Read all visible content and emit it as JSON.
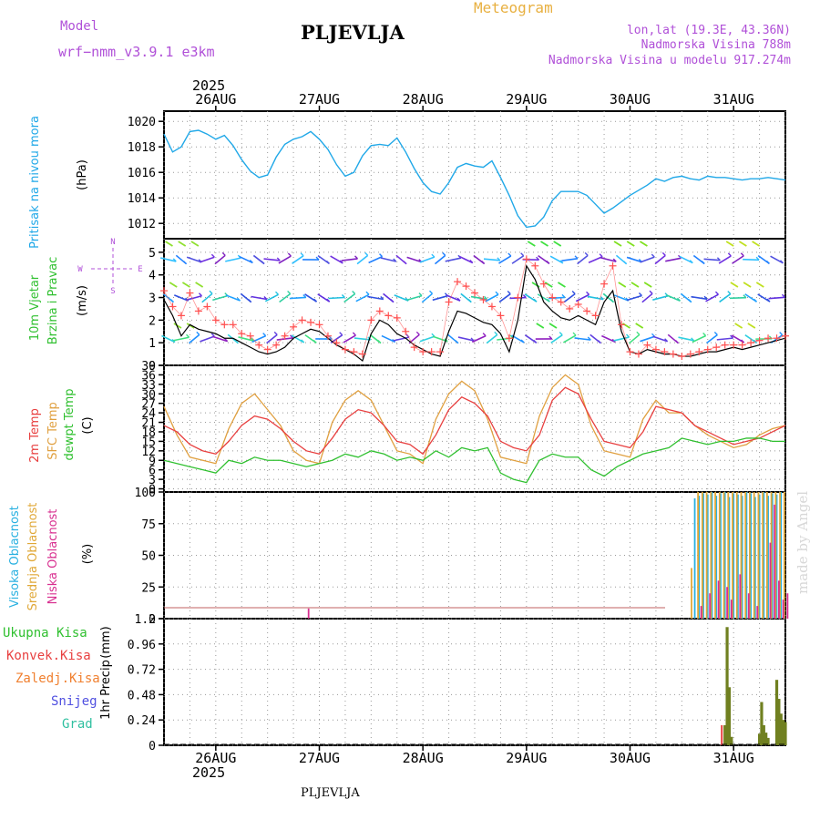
{
  "header": {
    "model_label": "Model",
    "model_name": "wrf−nmm_v3.9.1  e3km",
    "station": "PLJEVLJA",
    "title": "Meteogram",
    "lonlat": "lon,lat (19.3E, 43.36N)",
    "elevation": "Nadmorska Visina 788m",
    "model_elevation": "Nadmorska Visina u modelu 917.274m",
    "year_top": "2025",
    "year_bottom": "2025",
    "footer_station": "PLJEVLJA",
    "watermark": "made by Angel"
  },
  "colors": {
    "model": "#b050d8",
    "title": "#e8b040",
    "pressure": "#20a8e8",
    "t2m": "#e84040",
    "tsfc": "#e0a040",
    "dew": "#30c030",
    "high": "#28b0e0",
    "mid": "#e0a838",
    "low": "#d83090",
    "total_precip": "#30c030",
    "convective": "#e84040",
    "frozen": "#f08030",
    "snow": "#5050e0",
    "graupel": "#30c0a0",
    "wind_speed": "#000000",
    "gust": "#ff5050"
  },
  "chart_data": [
    {
      "type": "line",
      "panel": "pressure",
      "ylabel_1": "Pritisak na nivou mora",
      "ylabel_2": "(hPa)",
      "x_axis": {
        "labels": [
          "26AUG",
          "27AUG",
          "28AUG",
          "29AUG",
          "30AUG",
          "31AUG"
        ],
        "range_hours": [
          0,
          144
        ]
      },
      "ylim": [
        1010.8,
        1020.8
      ],
      "yticks": [
        1012,
        1014,
        1016,
        1018,
        1020
      ],
      "series": [
        {
          "name": "MSLP",
          "x": [
            0,
            2,
            4,
            6,
            8,
            10,
            12,
            14,
            16,
            18,
            20,
            22,
            24,
            26,
            28,
            30,
            32,
            34,
            36,
            38,
            40,
            42,
            44,
            46,
            48,
            50,
            52,
            54,
            56,
            58,
            60,
            62,
            64,
            66,
            68,
            70,
            72,
            74,
            76,
            78,
            80,
            82,
            84,
            86,
            88,
            90,
            92,
            94,
            96,
            98,
            100,
            102,
            104,
            106,
            108,
            110,
            112,
            114,
            116,
            118,
            120,
            122,
            124,
            126,
            128,
            130,
            132,
            134,
            136,
            138,
            140,
            142,
            144
          ],
          "values": [
            1019.0,
            1017.6,
            1018.0,
            1019.2,
            1019.3,
            1019.0,
            1018.6,
            1018.9,
            1018.1,
            1017.0,
            1016.1,
            1015.6,
            1015.8,
            1017.2,
            1018.2,
            1018.6,
            1018.8,
            1019.2,
            1018.6,
            1017.8,
            1016.6,
            1015.7,
            1016.0,
            1017.3,
            1018.1,
            1018.2,
            1018.1,
            1018.7,
            1017.6,
            1016.3,
            1015.2,
            1014.5,
            1014.3,
            1015.2,
            1016.4,
            1016.7,
            1016.5,
            1016.4,
            1016.9,
            1015.6,
            1014.2,
            1012.6,
            1011.7,
            1011.8,
            1012.5,
            1013.8,
            1014.5,
            1014.5,
            1014.5,
            1014.2,
            1013.5,
            1012.8,
            1013.2,
            1013.7,
            1014.2,
            1014.6,
            1015.0,
            1015.5,
            1015.3,
            1015.6,
            1015.7,
            1015.5,
            1015.4,
            1015.7,
            1015.6,
            1015.6,
            1015.5,
            1015.4,
            1015.5,
            1015.5,
            1015.6,
            1015.5,
            1015.4
          ]
        }
      ]
    },
    {
      "type": "line",
      "panel": "wind",
      "ylabel_1": "10m Vjetar",
      "ylabel_2": "Brzina i Pravac",
      "ylabel_3": "(m/s)",
      "compass": {
        "n": "N",
        "s": "S",
        "e": "E",
        "w": "W"
      },
      "x_axis": {
        "range_hours": [
          0,
          144
        ]
      },
      "ylim": [
        0,
        5.6
      ],
      "yticks": [
        0,
        1,
        2,
        3,
        4,
        5
      ],
      "series": [
        {
          "name": "wind speed",
          "x": [
            0,
            2,
            4,
            6,
            8,
            10,
            12,
            14,
            16,
            18,
            20,
            22,
            24,
            26,
            28,
            30,
            32,
            34,
            36,
            38,
            40,
            42,
            44,
            46,
            48,
            50,
            52,
            54,
            56,
            58,
            60,
            62,
            64,
            66,
            68,
            70,
            72,
            74,
            76,
            78,
            80,
            82,
            84,
            86,
            88,
            90,
            92,
            94,
            96,
            98,
            100,
            102,
            104,
            106,
            108,
            110,
            112,
            114,
            116,
            118,
            120,
            122,
            124,
            126,
            128,
            130,
            132,
            134,
            136,
            138,
            140,
            142,
            144
          ],
          "values": [
            2.9,
            2.2,
            1.3,
            1.8,
            1.6,
            1.5,
            1.4,
            1.2,
            1.2,
            1.0,
            0.8,
            0.6,
            0.5,
            0.6,
            0.8,
            1.2,
            1.4,
            1.6,
            1.5,
            1.2,
            0.9,
            0.7,
            0.5,
            0.2,
            1.4,
            2.0,
            1.8,
            1.4,
            1.2,
            0.9,
            0.7,
            0.5,
            0.4,
            1.5,
            2.4,
            2.3,
            2.1,
            1.9,
            1.8,
            1.4,
            0.6,
            2.0,
            4.4,
            3.8,
            2.8,
            2.4,
            2.1,
            2.0,
            2.2,
            2.0,
            1.8,
            2.8,
            3.3,
            1.5,
            0.6,
            0.5,
            0.7,
            0.6,
            0.5,
            0.5,
            0.4,
            0.4,
            0.5,
            0.6,
            0.6,
            0.7,
            0.8,
            0.7,
            0.8,
            0.9,
            1.0,
            1.1,
            1.2
          ]
        },
        {
          "name": "gust",
          "x": [
            0,
            2,
            4,
            6,
            8,
            10,
            12,
            14,
            16,
            18,
            20,
            22,
            24,
            26,
            28,
            30,
            32,
            34,
            36,
            38,
            40,
            42,
            44,
            46,
            48,
            50,
            52,
            54,
            56,
            58,
            60,
            62,
            64,
            66,
            68,
            70,
            72,
            74,
            76,
            78,
            80,
            82,
            84,
            86,
            88,
            90,
            92,
            94,
            96,
            98,
            100,
            102,
            104,
            106,
            108,
            110,
            112,
            114,
            116,
            118,
            120,
            122,
            124,
            126,
            128,
            130,
            132,
            134,
            136,
            138,
            140,
            142,
            144
          ],
          "values": [
            3.3,
            2.6,
            2.2,
            3.2,
            2.4,
            2.6,
            2.0,
            1.8,
            1.8,
            1.4,
            1.3,
            0.9,
            0.7,
            0.9,
            1.3,
            1.7,
            2.0,
            1.9,
            1.8,
            1.3,
            1.0,
            0.7,
            0.6,
            0.5,
            2.0,
            2.4,
            2.2,
            2.1,
            1.5,
            0.8,
            0.6,
            0.6,
            0.6,
            2.8,
            3.7,
            3.5,
            3.2,
            2.9,
            2.6,
            2.2,
            1.2,
            3.0,
            4.7,
            4.4,
            3.6,
            3.0,
            2.8,
            2.5,
            2.7,
            2.4,
            2.2,
            3.6,
            4.4,
            1.8,
            0.6,
            0.5,
            0.9,
            0.7,
            0.6,
            0.5,
            0.4,
            0.5,
            0.6,
            0.7,
            0.8,
            0.9,
            0.9,
            0.9,
            1.0,
            1.1,
            1.2,
            1.2,
            1.3
          ]
        }
      ]
    },
    {
      "type": "line",
      "panel": "temperature",
      "ylabel_1": "2m Temp",
      "ylabel_2": "SFC Temp",
      "ylabel_3": "dewpt Temp",
      "ylabel_4": "(C)",
      "x_axis": {
        "range_hours": [
          0,
          144
        ]
      },
      "ylim": [
        -1,
        39
      ],
      "yticks": [
        0,
        3,
        6,
        9,
        12,
        15,
        18,
        21,
        24,
        27,
        30,
        33,
        36,
        39
      ],
      "series": [
        {
          "name": "2m Temp",
          "x": [
            0,
            3,
            6,
            9,
            12,
            15,
            18,
            21,
            24,
            27,
            30,
            33,
            36,
            39,
            42,
            45,
            48,
            51,
            54,
            57,
            60,
            63,
            66,
            69,
            72,
            75,
            78,
            81,
            84,
            87,
            90,
            93,
            96,
            99,
            102,
            105,
            108,
            111,
            114,
            117,
            120,
            123,
            126,
            129,
            132,
            135,
            138,
            141,
            144
          ],
          "values": [
            20,
            18,
            14,
            12,
            11,
            15,
            20,
            23,
            22,
            19,
            15,
            12,
            11,
            16,
            22,
            25,
            24,
            20,
            15,
            14,
            11,
            17,
            25,
            29,
            27,
            23,
            15,
            13,
            12,
            17,
            28,
            32,
            30,
            22,
            15,
            14,
            13,
            18,
            26,
            25,
            24,
            20,
            18,
            16,
            14,
            15,
            16,
            18,
            20
          ]
        },
        {
          "name": "SFC Temp",
          "x": [
            0,
            3,
            6,
            9,
            12,
            15,
            18,
            21,
            24,
            27,
            30,
            33,
            36,
            39,
            42,
            45,
            48,
            51,
            54,
            57,
            60,
            63,
            66,
            69,
            72,
            75,
            78,
            81,
            84,
            87,
            90,
            93,
            96,
            99,
            102,
            105,
            108,
            111,
            114,
            117,
            120,
            123,
            126,
            129,
            132,
            135,
            138,
            141,
            144
          ],
          "values": [
            26,
            17,
            10,
            9,
            8,
            19,
            27,
            30,
            25,
            20,
            12,
            9,
            8,
            21,
            28,
            31,
            28,
            20,
            12,
            11,
            8,
            22,
            30,
            34,
            31,
            22,
            10,
            9,
            8,
            23,
            32,
            36,
            33,
            20,
            12,
            11,
            10,
            22,
            28,
            24,
            24,
            20,
            17,
            15,
            13,
            14,
            17,
            19,
            20
          ]
        },
        {
          "name": "dewpt Temp",
          "x": [
            0,
            3,
            6,
            9,
            12,
            15,
            18,
            21,
            24,
            27,
            30,
            33,
            36,
            39,
            42,
            45,
            48,
            51,
            54,
            57,
            60,
            63,
            66,
            69,
            72,
            75,
            78,
            81,
            84,
            87,
            90,
            93,
            96,
            99,
            102,
            105,
            108,
            111,
            114,
            117,
            120,
            123,
            126,
            129,
            132,
            135,
            138,
            141,
            144
          ],
          "values": [
            9,
            8,
            7,
            6,
            5,
            9,
            8,
            10,
            9,
            9,
            8,
            7,
            8,
            9,
            11,
            10,
            12,
            11,
            9,
            10,
            9,
            12,
            10,
            13,
            12,
            13,
            5,
            3,
            2,
            9,
            11,
            10,
            10,
            6,
            4,
            7,
            9,
            11,
            12,
            13,
            16,
            15,
            14,
            15,
            15,
            16,
            16,
            15,
            15
          ]
        }
      ]
    },
    {
      "type": "bar",
      "panel": "cloud",
      "ylabel_1": "Visoka Oblacnost",
      "ylabel_2": "Srednja Oblacnost",
      "ylabel_3": "Niska Oblacnost",
      "ylabel_4": "(%)",
      "x_axis": {
        "range_hours": [
          0,
          144
        ]
      },
      "ylim": [
        0,
        100
      ],
      "yticks": [
        0,
        25,
        50,
        75,
        100
      ],
      "series": [
        {
          "name": "Visoka Oblacnost",
          "x": [
            123,
            124,
            125,
            126,
            127,
            128,
            129,
            130,
            131,
            132,
            133,
            134,
            135,
            136,
            137,
            138,
            139,
            140,
            141,
            142,
            143
          ],
          "values": [
            95,
            97,
            99,
            98,
            100,
            97,
            99,
            100,
            96,
            99,
            98,
            97,
            100,
            99,
            96,
            98,
            100,
            97,
            99,
            98,
            100
          ]
        },
        {
          "name": "Srednja Oblacnost",
          "x": [
            122,
            123.5,
            124.5,
            125.5,
            126.5,
            127.5,
            128.5,
            129.5,
            130.5,
            131.5,
            132.5,
            133.5,
            134.5,
            135.5,
            136.5,
            137.5,
            138.5,
            139.5,
            140.5,
            141.5,
            142.5,
            143.5
          ],
          "values": [
            40,
            100,
            100,
            100,
            100,
            100,
            100,
            100,
            100,
            100,
            100,
            100,
            100,
            100,
            100,
            100,
            100,
            100,
            100,
            100,
            100,
            100
          ]
        },
        {
          "name": "Niska Oblacnost",
          "x": [
            33,
            124,
            126,
            128,
            130,
            131,
            133,
            135,
            137,
            140,
            141,
            142,
            143,
            144
          ],
          "values": [
            8,
            10,
            20,
            30,
            25,
            15,
            35,
            20,
            10,
            60,
            90,
            30,
            15,
            20
          ]
        }
      ]
    },
    {
      "type": "bar",
      "panel": "precipitation",
      "ylabel_1": "1hr Precip",
      "ylabel_2": "(mm)",
      "legend": [
        "Ukupna Kisa",
        "Konvek.Kisa",
        "Zaledj.Kisa",
        "Snijeg",
        "Grad"
      ],
      "x_axis": {
        "labels": [
          "26AUG",
          "27AUG",
          "28AUG",
          "29AUG",
          "30AUG",
          "31AUG"
        ],
        "range_hours": [
          0,
          144
        ]
      },
      "ylim": [
        0,
        1.2
      ],
      "yticks": [
        "0",
        "0.24",
        "0.48",
        "0.72",
        "0.96",
        "1.2"
      ],
      "series": [
        {
          "name": "Ukupna Kisa",
          "x": [
            130,
            130.5,
            131,
            131.5,
            138,
            138.5,
            139,
            139.5,
            140,
            142,
            142.5,
            143,
            143.5,
            144
          ],
          "values": [
            0.19,
            1.12,
            0.55,
            0.08,
            0.11,
            0.41,
            0.19,
            0.12,
            0.07,
            0.62,
            0.44,
            0.3,
            0.24,
            0.22
          ]
        },
        {
          "name": "Konvek.Kisa",
          "x": [
            130
          ],
          "values": [
            0.19
          ]
        }
      ]
    }
  ]
}
